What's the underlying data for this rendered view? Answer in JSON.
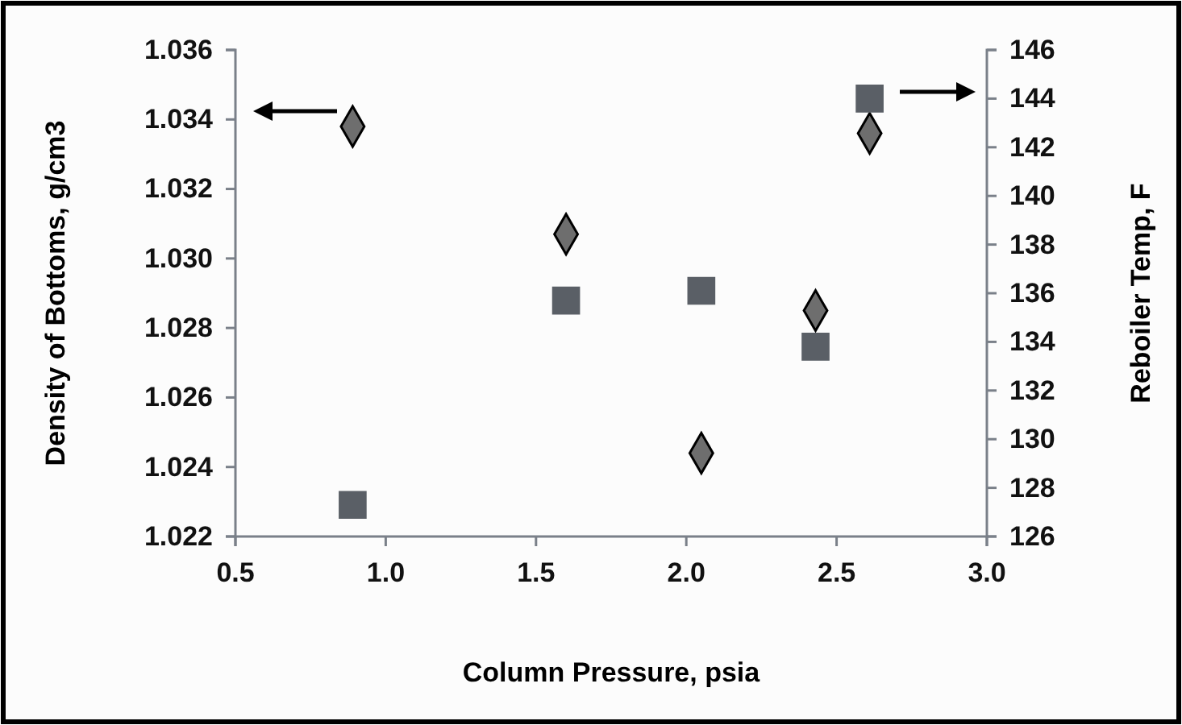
{
  "chart_data": {
    "type": "scatter",
    "xlabel": "Column Pressure, psia",
    "ylabel": "Density of Bottoms, g/cm3",
    "y2label": "Reboiler Temp, F",
    "xlim": [
      0.5,
      3.0
    ],
    "xticks": [
      {
        "value": 0.5,
        "label": "0.5"
      },
      {
        "value": 1.0,
        "label": "1.0"
      },
      {
        "value": 1.5,
        "label": "1.5"
      },
      {
        "value": 2.0,
        "label": "2.0"
      },
      {
        "value": 2.5,
        "label": "2.5"
      },
      {
        "value": 3.0,
        "label": "3.0"
      }
    ],
    "ylim": [
      1.022,
      1.036
    ],
    "yticks": [
      {
        "value": 1.022,
        "label": "1.022"
      },
      {
        "value": 1.024,
        "label": "1.024"
      },
      {
        "value": 1.026,
        "label": "1.026"
      },
      {
        "value": 1.028,
        "label": "1.028"
      },
      {
        "value": 1.03,
        "label": "1.030"
      },
      {
        "value": 1.032,
        "label": "1.032"
      },
      {
        "value": 1.034,
        "label": "1.034"
      },
      {
        "value": 1.036,
        "label": "1.036"
      }
    ],
    "y2lim": [
      126,
      146
    ],
    "y2ticks": [
      126,
      128,
      130,
      132,
      134,
      136,
      138,
      140,
      142,
      144,
      146
    ],
    "grid": false,
    "series": [
      {
        "color": "#6e6e6e",
        "marker": "diamond",
        "x": [
          0.89,
          1.6,
          2.05,
          2.43,
          2.61
        ],
        "values": [
          1.0338,
          1.0307,
          1.0244,
          1.0285,
          1.0336
        ]
      },
      {
        "color": "#5a5f66",
        "marker": "square",
        "axis": "y2",
        "x": [
          0.89,
          1.6,
          2.05,
          2.43,
          2.61
        ],
        "values": [
          127.3,
          135.7,
          136.1,
          133.8,
          144.0
        ]
      }
    ]
  }
}
